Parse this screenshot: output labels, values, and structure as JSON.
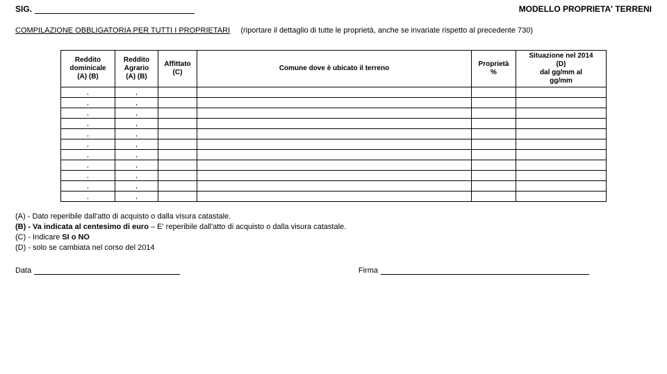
{
  "header": {
    "sig_label": "SIG.",
    "title_right": "MODELLO PROPRIETA' TERRENI"
  },
  "sub": {
    "lead": "COMPILAZIONE OBBLIGATORIA PER TUTTI I PROPRIETARI",
    "paren": "(riportare il dettaglio di tutte le proprietà, anche se invariate rispetto al precedente 730)"
  },
  "table": {
    "headers": {
      "c0": "Reddito\ndominicale\n(A) (B)",
      "c1": "Reddito\nAgrario\n(A) (B)",
      "c2": "Affittato\n(C)",
      "c3": "Comune dove è ubicato il terreno",
      "c4": "Proprietà\n%",
      "c5": "Situazione nel 2014\n(D)\ndal gg/mm    al\ngg/mm"
    },
    "row_cell": ","
  },
  "notes": {
    "a": "(A) - Dato reperibile dall'atto di acquisto o dalla visura catastale.",
    "b_prefix": "(B) - Va indicata al centesimo di euro",
    "b_rest": " – E' reperibile dall'atto di acquisto  o dalla visura catastale.",
    "c_prefix": "(C) - ",
    "c_mid": "Indicare ",
    "c_bold": "SI o NO",
    "d": "(D) - solo se cambiata nel corso del 2014"
  },
  "footer": {
    "data_label": "Data",
    "firma_label": "Firma"
  }
}
